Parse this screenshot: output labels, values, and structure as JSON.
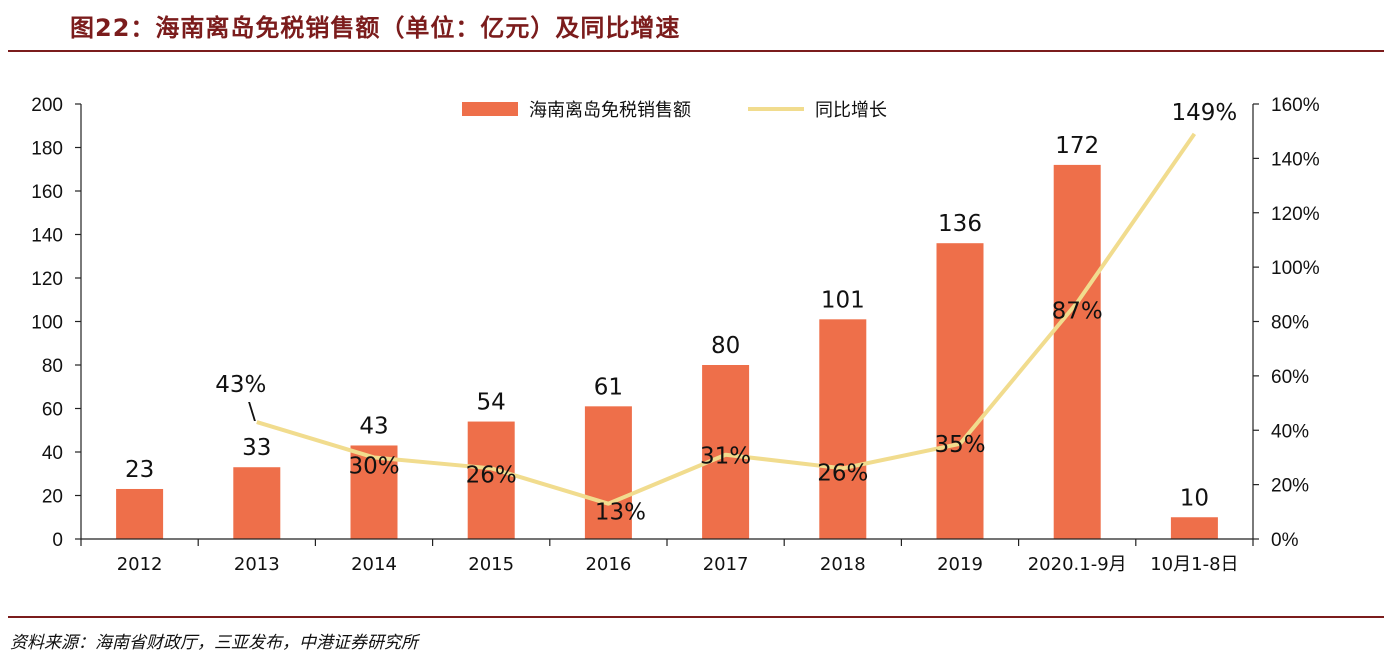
{
  "figure": {
    "title": "图22：海南离岛免税销售额（单位：亿元）及同比增速",
    "source": "资料来源：海南省财政厅，三亚发布，中港证券研究所"
  },
  "chart_data": {
    "type": "bar",
    "categories": [
      "2012",
      "2013",
      "2014",
      "2015",
      "2016",
      "2017",
      "2018",
      "2019",
      "2020.1-9月",
      "10月1-8日"
    ],
    "series": [
      {
        "name": "海南离岛免税销售额",
        "type": "bar",
        "axis": "left",
        "color": "#ee6f4a",
        "values": [
          23,
          33,
          43,
          54,
          61,
          80,
          101,
          136,
          172,
          10
        ],
        "labels": [
          "23",
          "33",
          "43",
          "54",
          "61",
          "80",
          "101",
          "136",
          "172",
          "10"
        ]
      },
      {
        "name": "同比增长",
        "type": "line",
        "axis": "right",
        "color": "#f1dc8e",
        "values": [
          null,
          43,
          30,
          26,
          13,
          31,
          26,
          35,
          87,
          149
        ],
        "labels": [
          "",
          "43%",
          "30%",
          "26%",
          "13%",
          "31%",
          "26%",
          "35%",
          "87%",
          "149%"
        ]
      }
    ],
    "y_left": {
      "min": 0,
      "max": 200,
      "step": 20,
      "ticks": [
        "0",
        "20",
        "40",
        "60",
        "80",
        "100",
        "120",
        "140",
        "160",
        "180",
        "200"
      ]
    },
    "y_right": {
      "min": 0,
      "max": 160,
      "step": 20,
      "ticks": [
        "0%",
        "20%",
        "40%",
        "60%",
        "80%",
        "100%",
        "120%",
        "140%",
        "160%"
      ]
    },
    "annotations": [
      "\\"
    ],
    "legend": "top-center",
    "grid": false
  }
}
